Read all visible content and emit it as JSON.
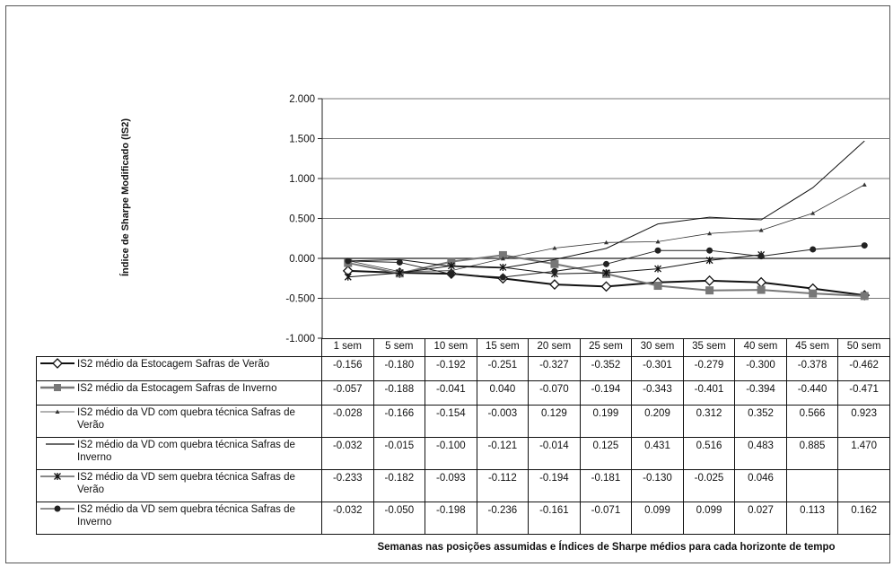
{
  "chart_data": {
    "type": "line",
    "ylabel": "Índice de Sharpe Modificado (IS2)",
    "xlabel": "Semanas nas posições assumidas e Índices de Sharpe médios para cada horizonte de tempo",
    "ylim": [
      -1.0,
      2.0
    ],
    "yticks": [
      "2.000",
      "1.500",
      "1.000",
      "0.500",
      "0.000",
      "-0.500",
      "-1.000"
    ],
    "ytick_values": [
      2.0,
      1.5,
      1.0,
      0.5,
      0.0,
      -0.5,
      -1.0
    ],
    "categories": [
      "1 sem",
      "5 sem",
      "10 sem",
      "15 sem",
      "20 sem",
      "25 sem",
      "30 sem",
      "35 sem",
      "40 sem",
      "45 sem",
      "50 sem"
    ],
    "grid": true,
    "series": [
      {
        "name": "IS2 médio da Estocagem Safras de Verão",
        "marker": "diamond",
        "color": "#111111",
        "values": [
          -0.156,
          -0.18,
          -0.192,
          -0.251,
          -0.327,
          -0.352,
          -0.301,
          -0.279,
          -0.3,
          -0.378,
          -0.462
        ],
        "labels": [
          "-0.156",
          "-0.180",
          "-0.192",
          "-0.251",
          "-0.327",
          "-0.352",
          "-0.301",
          "-0.279",
          "-0.300",
          "-0.378",
          "-0.462"
        ]
      },
      {
        "name": "IS2 médio da Estocagem Safras de Inverno",
        "marker": "square",
        "color": "#777777",
        "values": [
          -0.057,
          -0.188,
          -0.041,
          0.04,
          -0.07,
          -0.194,
          -0.343,
          -0.401,
          -0.394,
          -0.44,
          -0.471
        ],
        "labels": [
          "-0.057",
          "-0.188",
          "-0.041",
          "0.040",
          "-0.070",
          "-0.194",
          "-0.343",
          "-0.401",
          "-0.394",
          "-0.440",
          "-0.471"
        ]
      },
      {
        "name": "IS2 médio da VD com quebra técnica Safras de Verão",
        "marker": "triangle",
        "color": "#333333",
        "values": [
          -0.028,
          -0.166,
          -0.154,
          -0.003,
          0.129,
          0.199,
          0.209,
          0.312,
          0.352,
          0.566,
          0.923
        ],
        "labels": [
          "-0.028",
          "-0.166",
          "-0.154",
          "-0.003",
          "0.129",
          "0.199",
          "0.209",
          "0.312",
          "0.352",
          "0.566",
          "0.923"
        ]
      },
      {
        "name": "IS2 médio da VD com quebra técnica Safras de Inverno",
        "marker": "dash",
        "color": "#111111",
        "values": [
          -0.032,
          -0.015,
          -0.1,
          -0.121,
          -0.014,
          0.125,
          0.431,
          0.516,
          0.483,
          0.885,
          1.47
        ],
        "labels": [
          "-0.032",
          "-0.015",
          "-0.100",
          "-0.121",
          "-0.014",
          "0.125",
          "0.431",
          "0.516",
          "0.483",
          "0.885",
          "1.470"
        ]
      },
      {
        "name": "IS2 médio da VD sem quebra técnica Safras de Verão",
        "marker": "star",
        "color": "#111111",
        "values": [
          -0.233,
          -0.182,
          -0.093,
          -0.112,
          -0.194,
          -0.181,
          -0.13,
          -0.025,
          0.046,
          null,
          null
        ],
        "labels": [
          "-0.233",
          "-0.182",
          "-0.093",
          "-0.112",
          "-0.194",
          "-0.181",
          "-0.130",
          "-0.025",
          "0.046",
          "",
          ""
        ]
      },
      {
        "name": "IS2 médio da VD sem quebra técnica Safras de Inverno",
        "marker": "circle",
        "color": "#222222",
        "values": [
          -0.032,
          -0.05,
          -0.198,
          -0.236,
          -0.161,
          -0.071,
          0.099,
          0.099,
          0.027,
          0.113,
          0.162
        ],
        "labels": [
          "-0.032",
          "-0.050",
          "-0.198",
          "-0.236",
          "-0.161",
          "-0.071",
          "0.099",
          "0.099",
          "0.027",
          "0.113",
          "0.162"
        ]
      }
    ]
  }
}
